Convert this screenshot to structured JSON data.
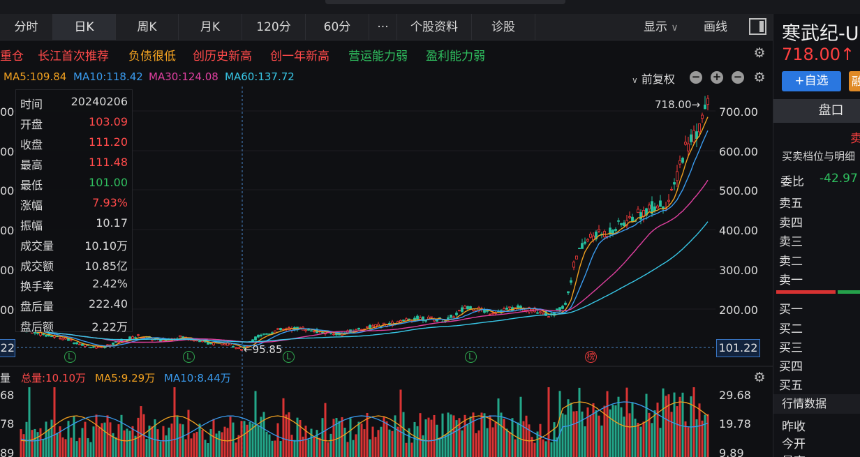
{
  "tabs": [
    "分时",
    "日K",
    "周K",
    "月K",
    "120分",
    "60分",
    "···",
    "个股资料",
    "诊股"
  ],
  "active_tab": "日K",
  "toolbar": {
    "display_label": "显示",
    "draw_label": "画线"
  },
  "tags": [
    {
      "text": "重仓",
      "color": "#ff4a4a"
    },
    {
      "text": "长江首次推荐",
      "color": "#ff4a4a"
    },
    {
      "text": "负债很低",
      "color": "#f0a020"
    },
    {
      "text": "创历史新高",
      "color": "#ff4a4a"
    },
    {
      "text": "创一年新高",
      "color": "#ff4a4a"
    },
    {
      "text": "营运能力弱",
      "color": "#2fbf5f"
    },
    {
      "text": "盈利能力弱",
      "color": "#2fbf5f"
    }
  ],
  "ma": [
    {
      "text": "MA5:109.84",
      "color": "#f0a020"
    },
    {
      "text": "MA10:118.42",
      "color": "#3a9cf0"
    },
    {
      "text": "MA30:124.08",
      "color": "#e040a0"
    },
    {
      "text": "MA60:137.72",
      "color": "#38c8e8"
    }
  ],
  "adjust_label": "前复权",
  "info": [
    {
      "k": "时间",
      "v": "20240206",
      "c": "#d8d8d8"
    },
    {
      "k": "开盘",
      "v": "103.09",
      "c": "#ff4a4a"
    },
    {
      "k": "收盘",
      "v": "111.20",
      "c": "#ff4a4a"
    },
    {
      "k": "最高",
      "v": "111.48",
      "c": "#ff4a4a"
    },
    {
      "k": "最低",
      "v": "101.00",
      "c": "#2fbf5f"
    },
    {
      "k": "涨幅",
      "v": "7.93%",
      "c": "#ff4a4a"
    },
    {
      "k": "振幅",
      "v": "10.17",
      "c": "#d8d8d8"
    },
    {
      "k": "成交量",
      "v": "10.10万",
      "c": "#d8d8d8"
    },
    {
      "k": "成交额",
      "v": "10.85亿",
      "c": "#d8d8d8"
    },
    {
      "k": "换手率",
      "v": "2.42%",
      "c": "#d8d8d8"
    },
    {
      "k": "盘后量",
      "v": "222.40",
      "c": "#d8d8d8"
    },
    {
      "k": "盘后额",
      "v": "2.22万",
      "c": "#d8d8d8"
    }
  ],
  "price_axis": [
    "700.00",
    "600.00",
    "500.00",
    "400.00",
    "300.00",
    "200.00"
  ],
  "price_axis_left": [
    "00",
    "00",
    "00",
    "00",
    "00",
    "00"
  ],
  "current_price_label": "101.22",
  "low_label": "←95.85",
  "high_label": "718.00→",
  "event_marks": [
    "L",
    "L",
    "L",
    "L",
    "榜"
  ],
  "volume": {
    "title": "量",
    "items": [
      {
        "text": "总量:10.10万",
        "color": "#ff4a4a"
      },
      {
        "text": "MA5:9.29万",
        "color": "#f0a020"
      },
      {
        "text": "MA10:8.44万",
        "color": "#3a9cf0"
      }
    ],
    "axis": [
      "29.68",
      "19.78",
      "9.89"
    ],
    "axis_left": [
      "68",
      "78",
      "89"
    ]
  },
  "sidebar": {
    "name": "寒武纪-U",
    "price": "718.00↑",
    "add_label": "+自选",
    "rong_label": "融",
    "tab_label": "盘口",
    "sell_label": "卖",
    "sub_label": "买卖档位与明细",
    "wb_label": "委比",
    "wb_value": "-42.97",
    "sell_levels": [
      "卖五",
      "卖四",
      "卖三",
      "卖二",
      "卖一"
    ],
    "buy_levels": [
      "买一",
      "买二",
      "买三",
      "买四",
      "买五"
    ],
    "quote_header": "行情数据",
    "fields": [
      "昨收",
      "今开",
      "最高"
    ]
  },
  "chart_data": {
    "type": "candlestick",
    "y_range": [
      95.85,
      718.0
    ],
    "last_close": 718.0,
    "period_low": 95.85,
    "period_high": 718.0,
    "volume_range": [
      0,
      29.68
    ]
  }
}
